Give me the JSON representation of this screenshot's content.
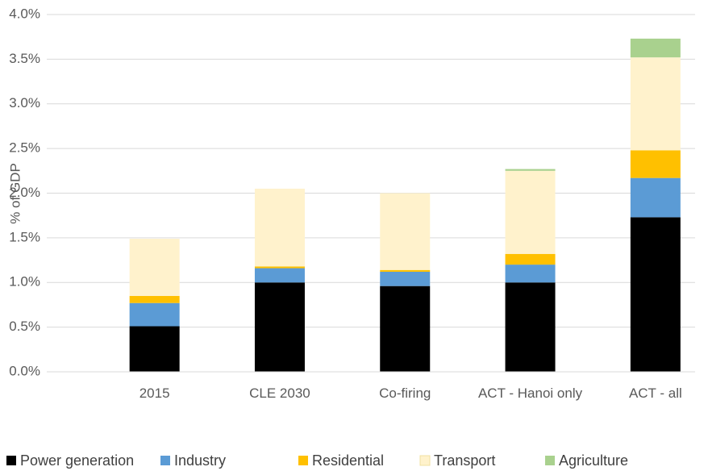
{
  "chart_data": {
    "type": "stacked_bar",
    "ylabel": "% of GDP",
    "categories": [
      "2015",
      "CLE 2030",
      "Co-firing",
      "ACT - Hanoi only",
      "ACT - all"
    ],
    "series": [
      {
        "name": "Power generation",
        "color": "#000000",
        "values": [
          0.51,
          1.0,
          0.96,
          1.0,
          1.73
        ]
      },
      {
        "name": "Industry",
        "color": "#5b9bd5",
        "values": [
          0.26,
          0.16,
          0.16,
          0.2,
          0.44
        ]
      },
      {
        "name": "Residential",
        "color": "#ffc000",
        "values": [
          0.08,
          0.02,
          0.02,
          0.12,
          0.31
        ]
      },
      {
        "name": "Transport",
        "color": "#fff2cc",
        "values": [
          0.64,
          0.87,
          0.86,
          0.93,
          1.04
        ]
      },
      {
        "name": "Agriculture",
        "color": "#a9d18e",
        "values": [
          0,
          0,
          0,
          0.02,
          0.21
        ]
      }
    ],
    "ylim": [
      0,
      4
    ],
    "yticks": [
      {
        "value": 0,
        "label": "0.0%"
      },
      {
        "value": 0.5,
        "label": "0.5%"
      },
      {
        "value": 1,
        "label": "1.0%"
      },
      {
        "value": 1.5,
        "label": "1.5%"
      },
      {
        "value": 2,
        "label": "2.0%"
      },
      {
        "value": 2.5,
        "label": "2.5%"
      },
      {
        "value": 3,
        "label": "3.0%"
      },
      {
        "value": 3.5,
        "label": "3.5%"
      },
      {
        "value": 4,
        "label": "4.0%"
      }
    ],
    "grid": true,
    "legend": "bottom"
  }
}
